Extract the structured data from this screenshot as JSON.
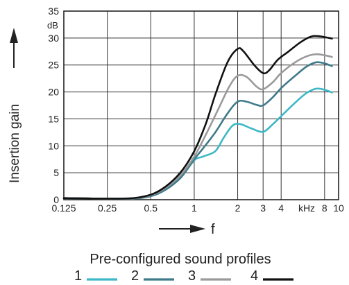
{
  "chart_data": {
    "type": "line",
    "title": "",
    "ylabel": "Insertion gain",
    "yunit": "dB",
    "xlabel": "f",
    "xunit": "kHz",
    "ylim": [
      0,
      35
    ],
    "xscale": "log",
    "xlim": [
      0.125,
      10
    ],
    "grid": true,
    "yticks": [
      0,
      5,
      10,
      15,
      20,
      25,
      30,
      35
    ],
    "xticks": [
      {
        "value": 0.125,
        "label": "0.125"
      },
      {
        "value": 0.25,
        "label": "0.25"
      },
      {
        "value": 0.5,
        "label": "0.5"
      },
      {
        "value": 1,
        "label": "1"
      },
      {
        "value": 2,
        "label": "2"
      },
      {
        "value": 3,
        "label": "3"
      },
      {
        "value": 4,
        "label": "4"
      },
      {
        "value": 8,
        "label": "8"
      },
      {
        "value": 10,
        "label": "10"
      }
    ],
    "legend_title": "Pre-configured sound profiles",
    "legend_position": "bottom",
    "series": [
      {
        "name": "1",
        "color": "#3db8c6",
        "points": [
          [
            0.125,
            0.3
          ],
          [
            0.3,
            0.2
          ],
          [
            0.45,
            0.4
          ],
          [
            0.6,
            1.5
          ],
          [
            0.8,
            4
          ],
          [
            1.0,
            7.3
          ],
          [
            1.15,
            8
          ],
          [
            1.4,
            9
          ],
          [
            1.6,
            11.5
          ],
          [
            1.85,
            13.8
          ],
          [
            2.1,
            14
          ],
          [
            2.5,
            13.2
          ],
          [
            3.0,
            12.6
          ],
          [
            3.5,
            14
          ],
          [
            4.0,
            15.5
          ],
          [
            5.0,
            18
          ],
          [
            6.0,
            19.8
          ],
          [
            7.0,
            20.6
          ],
          [
            8.0,
            20.4
          ],
          [
            9.0,
            19.9
          ]
        ]
      },
      {
        "name": "2",
        "color": "#3f7a8a",
        "points": [
          [
            0.125,
            0.3
          ],
          [
            0.3,
            0.2
          ],
          [
            0.45,
            0.4
          ],
          [
            0.6,
            1.5
          ],
          [
            0.8,
            4
          ],
          [
            1.0,
            7.5
          ],
          [
            1.15,
            9.5
          ],
          [
            1.4,
            12.5
          ],
          [
            1.7,
            16
          ],
          [
            2.0,
            18.2
          ],
          [
            2.3,
            18.2
          ],
          [
            2.7,
            17.6
          ],
          [
            3.0,
            17.5
          ],
          [
            3.5,
            19
          ],
          [
            4.0,
            20.7
          ],
          [
            5.0,
            23
          ],
          [
            6.0,
            24.7
          ],
          [
            7.0,
            25.5
          ],
          [
            8.0,
            25.3
          ],
          [
            9.0,
            24.8
          ]
        ]
      },
      {
        "name": "3",
        "color": "#9a9a9a",
        "points": [
          [
            0.125,
            0.3
          ],
          [
            0.3,
            0.2
          ],
          [
            0.45,
            0.5
          ],
          [
            0.6,
            1.8
          ],
          [
            0.8,
            4.5
          ],
          [
            1.0,
            8
          ],
          [
            1.2,
            12
          ],
          [
            1.45,
            16.5
          ],
          [
            1.75,
            21
          ],
          [
            2.0,
            23
          ],
          [
            2.3,
            22.8
          ],
          [
            2.7,
            21
          ],
          [
            3.0,
            20.5
          ],
          [
            3.5,
            21.8
          ],
          [
            4.0,
            23.5
          ],
          [
            5.0,
            25.5
          ],
          [
            6.0,
            26.6
          ],
          [
            7.0,
            27
          ],
          [
            8.0,
            26.8
          ],
          [
            9.0,
            26.5
          ]
        ]
      },
      {
        "name": "4",
        "color": "#111111",
        "points": [
          [
            0.125,
            0.3
          ],
          [
            0.3,
            0.2
          ],
          [
            0.45,
            0.6
          ],
          [
            0.6,
            2
          ],
          [
            0.8,
            5
          ],
          [
            1.0,
            9
          ],
          [
            1.2,
            14
          ],
          [
            1.4,
            19.5
          ],
          [
            1.7,
            25.5
          ],
          [
            2.0,
            28
          ],
          [
            2.2,
            27.5
          ],
          [
            2.6,
            25
          ],
          [
            3.0,
            23.5
          ],
          [
            3.3,
            24
          ],
          [
            3.8,
            26
          ],
          [
            4.5,
            27.5
          ],
          [
            5.5,
            29.3
          ],
          [
            6.5,
            30.3
          ],
          [
            7.5,
            30.3
          ],
          [
            9.0,
            29.9
          ]
        ]
      }
    ]
  }
}
